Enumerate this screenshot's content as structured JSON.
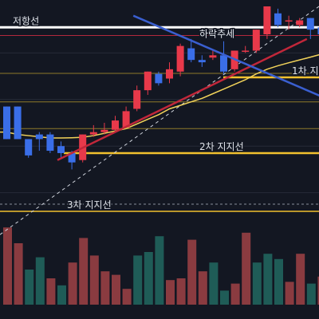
{
  "chart_data": {
    "type": "candlestick",
    "y_min": 0,
    "y_max": 100,
    "volume_max": 100,
    "colors": {
      "background": "#131722",
      "up": "#e8394a",
      "down": "#3a6ee8",
      "vol_up": "#8a3b40",
      "vol_down": "#1f5c57",
      "support": "#f2c12e",
      "ma": "#f2d35a",
      "resistance_line": "#ffffff",
      "uptrend": "#c1273a",
      "downtrend": "#3a5fd0",
      "thin_line": "#d9c55a"
    },
    "candles": [
      {
        "o": 57,
        "h": 57,
        "c": 43,
        "l": 43
      },
      {
        "o": 57,
        "h": 57,
        "c": 43,
        "l": 43
      },
      {
        "o": 43,
        "h": 43,
        "c": 36,
        "l": 35
      },
      {
        "o": 45,
        "h": 46,
        "c": 43,
        "l": 38
      },
      {
        "o": 45,
        "h": 46,
        "c": 38,
        "l": 37
      },
      {
        "o": 40,
        "h": 42,
        "c": 37,
        "l": 35
      },
      {
        "o": 37,
        "h": 38,
        "c": 33,
        "l": 30
      },
      {
        "o": 34,
        "h": 45,
        "c": 45,
        "l": 33
      },
      {
        "o": 45,
        "h": 49,
        "c": 46,
        "l": 44
      },
      {
        "o": 46,
        "h": 50,
        "c": 47,
        "l": 45
      },
      {
        "o": 47,
        "h": 53,
        "c": 51,
        "l": 46
      },
      {
        "o": 48,
        "h": 57,
        "c": 55,
        "l": 48
      },
      {
        "o": 56,
        "h": 66,
        "c": 64,
        "l": 55
      },
      {
        "o": 64,
        "h": 72,
        "c": 72,
        "l": 62
      },
      {
        "o": 71,
        "h": 72,
        "c": 67,
        "l": 66
      },
      {
        "o": 69,
        "h": 76,
        "c": 73,
        "l": 67
      },
      {
        "o": 72,
        "h": 84,
        "c": 83,
        "l": 70
      },
      {
        "o": 82,
        "h": 86,
        "c": 77,
        "l": 76
      },
      {
        "o": 77,
        "h": 79,
        "c": 76,
        "l": 74
      },
      {
        "o": 78,
        "h": 81,
        "c": 79,
        "l": 77
      },
      {
        "o": 79,
        "h": 85,
        "c": 72,
        "l": 71
      },
      {
        "o": 73,
        "h": 81,
        "c": 81,
        "l": 72
      },
      {
        "o": 81,
        "h": 83,
        "c": 81,
        "l": 80
      },
      {
        "o": 81,
        "h": 90,
        "c": 90,
        "l": 80
      },
      {
        "o": 88,
        "h": 100,
        "c": 100,
        "l": 86
      },
      {
        "o": 97,
        "h": 99,
        "c": 92,
        "l": 91
      },
      {
        "o": 94,
        "h": 96,
        "c": 94,
        "l": 90
      },
      {
        "o": 92,
        "h": 95,
        "c": 94,
        "l": 91
      },
      {
        "o": 95,
        "h": 95,
        "c": 90,
        "l": 86
      },
      {
        "o": 91,
        "h": 93,
        "c": 88,
        "l": 86
      }
    ],
    "volumes": [
      44,
      35,
      20,
      27,
      15,
      11,
      24,
      38,
      28,
      19,
      17,
      9,
      28,
      30,
      39,
      14,
      15,
      37,
      19,
      24,
      8,
      12,
      41,
      24,
      29,
      26,
      13,
      29,
      12,
      16
    ],
    "volume_up": [
      true,
      true,
      false,
      false,
      true,
      false,
      true,
      true,
      true,
      true,
      true,
      true,
      false,
      false,
      false,
      true,
      true,
      true,
      true,
      false,
      false,
      true,
      true,
      false,
      false,
      false,
      true,
      true,
      false,
      true
    ],
    "ma_line": [
      46,
      45,
      44.5,
      44,
      43.5,
      43.5,
      43.6,
      43.8,
      44.5,
      45.5,
      46.5,
      47.5,
      49.5,
      51.5,
      53.5,
      56,
      57.5,
      59,
      60.5,
      62.5,
      64.5,
      66.5,
      68.5,
      71,
      73,
      74.5,
      75.8,
      77,
      78.2,
      79.5
    ],
    "horizontal_levels": [
      {
        "value": 91,
        "color": "#ffffff",
        "label": "저항선",
        "label_pos": "left"
      },
      {
        "value": 87.5,
        "color": "#b2283d",
        "label": "",
        "label_pos": ""
      },
      {
        "value": 69.5,
        "color": "#f2c12e",
        "label": "1차 지지",
        "label_pos": "right"
      },
      {
        "value": 37,
        "color": "#f2c12e",
        "label": "2차 지지선",
        "label_pos": "center"
      },
      {
        "value": 12,
        "color": "#f2c12e",
        "label": "3차 지지선",
        "label_pos": "left"
      }
    ],
    "trendlines": [
      {
        "name": "uptrend",
        "from": [
          5,
          34
        ],
        "to": [
          28,
          86
        ]
      },
      {
        "name": "downtrend",
        "from": [
          12,
          96
        ],
        "to": [
          30,
          60
        ]
      }
    ],
    "annotations": [
      {
        "text": "하락추세",
        "near": "downtrend"
      }
    ]
  }
}
